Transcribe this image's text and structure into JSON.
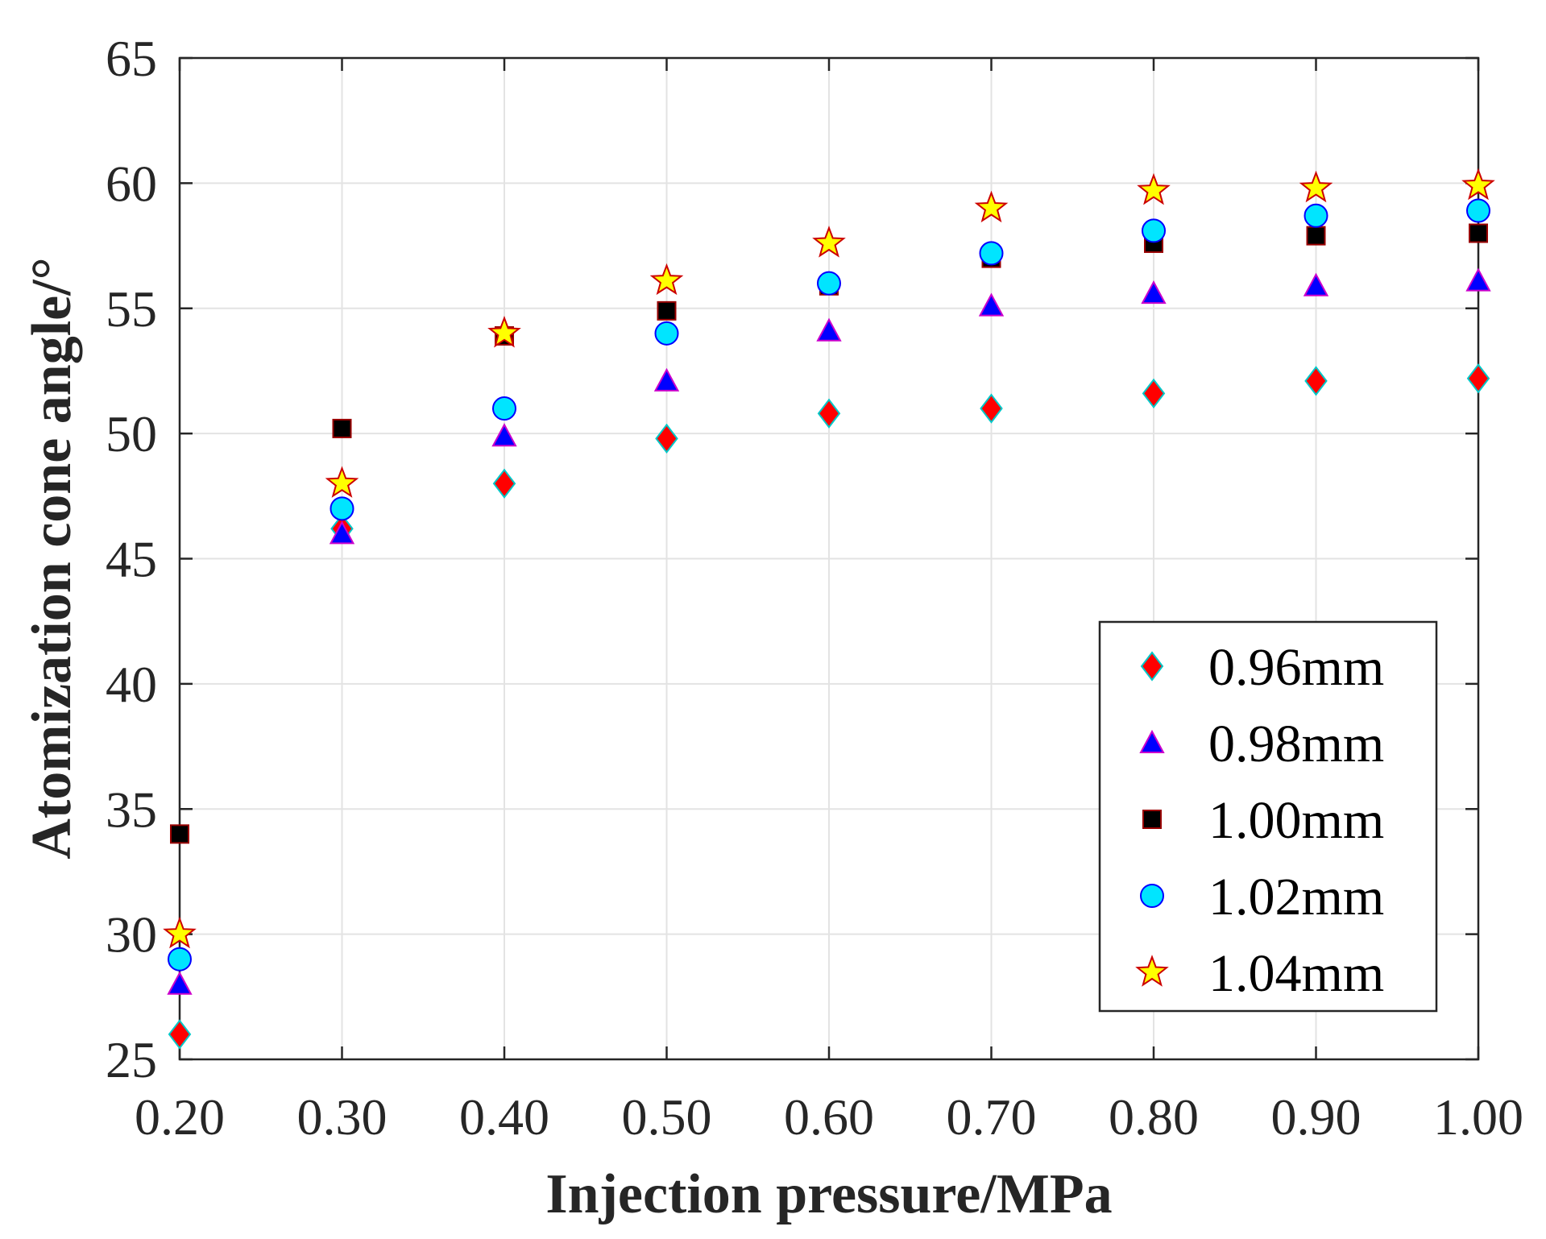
{
  "chart_data": {
    "type": "scatter",
    "title": "",
    "xlabel": "Injection pressure/MPa",
    "ylabel": "Atomization cone angle/°",
    "xlim": [
      0.2,
      1.0
    ],
    "ylim": [
      25,
      65
    ],
    "x": [
      0.2,
      0.3,
      0.4,
      0.5,
      0.6,
      0.7,
      0.8,
      0.9,
      1.0
    ],
    "xticks": [
      0.2,
      0.3,
      0.4,
      0.5,
      0.6,
      0.7,
      0.8,
      0.9,
      1.0
    ],
    "xtick_labels": [
      "0.20",
      "0.30",
      "0.40",
      "0.50",
      "0.60",
      "0.70",
      "0.80",
      "0.90",
      "1.00"
    ],
    "yticks": [
      25,
      30,
      35,
      40,
      45,
      50,
      55,
      60,
      65
    ],
    "ytick_labels": [
      "25",
      "30",
      "35",
      "40",
      "45",
      "50",
      "55",
      "60",
      "65"
    ],
    "grid": true,
    "legend_position": "bottom-right",
    "series": [
      {
        "name": "0.96mm",
        "marker": "diamond",
        "fill": "#ff0000",
        "edge": "#00c8c8",
        "values": [
          26.0,
          46.2,
          48.0,
          49.8,
          50.8,
          51.0,
          51.6,
          52.1,
          52.2
        ]
      },
      {
        "name": "0.98mm",
        "marker": "triangle",
        "fill": "#0000ff",
        "edge": "#cc00cc",
        "values": [
          28.0,
          46.0,
          49.9,
          52.1,
          54.1,
          55.1,
          55.6,
          55.9,
          56.1
        ]
      },
      {
        "name": "1.00mm",
        "marker": "square",
        "fill": "#000000",
        "edge": "#990000",
        "values": [
          34.0,
          50.2,
          53.9,
          54.9,
          55.9,
          57.0,
          57.6,
          57.9,
          58.0
        ]
      },
      {
        "name": "1.02mm",
        "marker": "circle",
        "fill": "#00e5ff",
        "edge": "#0000ff",
        "values": [
          29.0,
          47.0,
          51.0,
          54.0,
          56.0,
          57.2,
          58.1,
          58.7,
          58.9
        ]
      },
      {
        "name": "1.04mm",
        "marker": "star",
        "fill": "#ffff00",
        "edge": "#cc0000",
        "values": [
          30.0,
          48.0,
          54.0,
          56.1,
          57.6,
          59.0,
          59.7,
          59.8,
          59.9
        ]
      }
    ]
  }
}
